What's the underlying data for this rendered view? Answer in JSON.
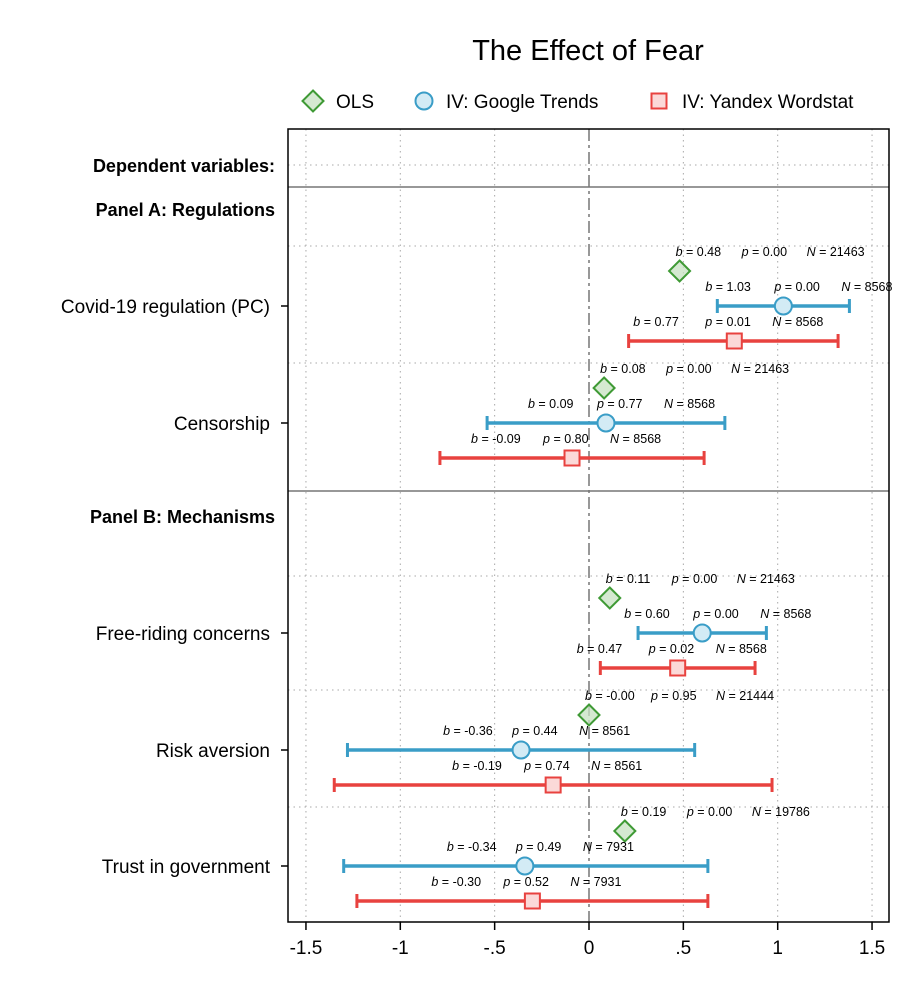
{
  "chart_data": {
    "type": "scatter",
    "title": "The Effect of Fear",
    "xlabel": "",
    "ylabel": "",
    "xlim": [
      -1.58,
      1.58
    ],
    "xticks": [
      {
        "value": -1.5,
        "label": "-1.5"
      },
      {
        "value": -1.0,
        "label": "-1"
      },
      {
        "value": -0.5,
        "label": "-.5"
      },
      {
        "value": 0.0,
        "label": "0"
      },
      {
        "value": 0.5,
        "label": ".5"
      },
      {
        "value": 1.0,
        "label": "1"
      },
      {
        "value": 1.5,
        "label": "1.5"
      }
    ],
    "grid": true,
    "reference_line_x": 0,
    "legend": {
      "position": "top",
      "entries": [
        {
          "key": "ols",
          "label": "OLS",
          "marker": "diamond",
          "color": "#3f9a35"
        },
        {
          "key": "gt",
          "label": "IV: Google Trends",
          "marker": "circle",
          "color": "#3a9dc7"
        },
        {
          "key": "yw",
          "label": "IV: Yandex Wordstat",
          "marker": "square",
          "color": "#e8423f"
        }
      ]
    },
    "dependent_header": "Dependent variables:",
    "panels": [
      {
        "label": "Panel A: Regulations",
        "variables": [
          {
            "name": "Covid-19 regulation (PC)",
            "estimates": [
              {
                "series": "ols",
                "b": 0.48,
                "ci": [
                  0.48,
                  0.48
                ],
                "b_label": "0.48",
                "p": "0.00",
                "N": "21463"
              },
              {
                "series": "gt",
                "b": 1.03,
                "ci": [
                  0.68,
                  1.38
                ],
                "b_label": "1.03",
                "p": "0.00",
                "N": "8568"
              },
              {
                "series": "yw",
                "b": 0.77,
                "ci": [
                  0.21,
                  1.32
                ],
                "b_label": "0.77",
                "p": "0.01",
                "N": "8568"
              }
            ]
          },
          {
            "name": "Censorship",
            "estimates": [
              {
                "series": "ols",
                "b": 0.08,
                "ci": [
                  0.08,
                  0.08
                ],
                "b_label": "0.08",
                "p": "0.00",
                "N": "21463"
              },
              {
                "series": "gt",
                "b": 0.09,
                "ci": [
                  -0.54,
                  0.72
                ],
                "b_label": "0.09",
                "p": "0.77",
                "N": "8568"
              },
              {
                "series": "yw",
                "b": -0.09,
                "ci": [
                  -0.79,
                  0.61
                ],
                "b_label": "-0.09",
                "p": "0.80",
                "N": "8568"
              }
            ]
          }
        ]
      },
      {
        "label": "Panel B: Mechanisms",
        "variables": [
          {
            "name": "Free-riding concerns",
            "estimates": [
              {
                "series": "ols",
                "b": 0.11,
                "ci": [
                  0.11,
                  0.11
                ],
                "b_label": "0.11",
                "p": "0.00",
                "N": "21463"
              },
              {
                "series": "gt",
                "b": 0.6,
                "ci": [
                  0.26,
                  0.94
                ],
                "b_label": "0.60",
                "p": "0.00",
                "N": "8568"
              },
              {
                "series": "yw",
                "b": 0.47,
                "ci": [
                  0.06,
                  0.88
                ],
                "b_label": "0.47",
                "p": "0.02",
                "N": "8568"
              }
            ]
          },
          {
            "name": "Risk aversion",
            "estimates": [
              {
                "series": "ols",
                "b": -0.0,
                "ci": [
                  -0.0,
                  -0.0
                ],
                "b_label": "-0.00",
                "p": "0.95",
                "N": "21444"
              },
              {
                "series": "gt",
                "b": -0.36,
                "ci": [
                  -1.28,
                  0.56
                ],
                "b_label": "-0.36",
                "p": "0.44",
                "N": "8561"
              },
              {
                "series": "yw",
                "b": -0.19,
                "ci": [
                  -1.35,
                  0.97
                ],
                "b_label": "-0.19",
                "p": "0.74",
                "N": "8561"
              }
            ]
          },
          {
            "name": "Trust in government",
            "estimates": [
              {
                "series": "ols",
                "b": 0.19,
                "ci": [
                  0.19,
                  0.19
                ],
                "b_label": "0.19",
                "p": "0.00",
                "N": "19786"
              },
              {
                "series": "gt",
                "b": -0.34,
                "ci": [
                  -1.3,
                  0.63
                ],
                "b_label": "-0.34",
                "p": "0.49",
                "N": "7931"
              },
              {
                "series": "yw",
                "b": -0.3,
                "ci": [
                  -1.23,
                  0.63
                ],
                "b_label": "-0.30",
                "p": "0.52",
                "N": "7931"
              }
            ]
          }
        ]
      }
    ]
  }
}
